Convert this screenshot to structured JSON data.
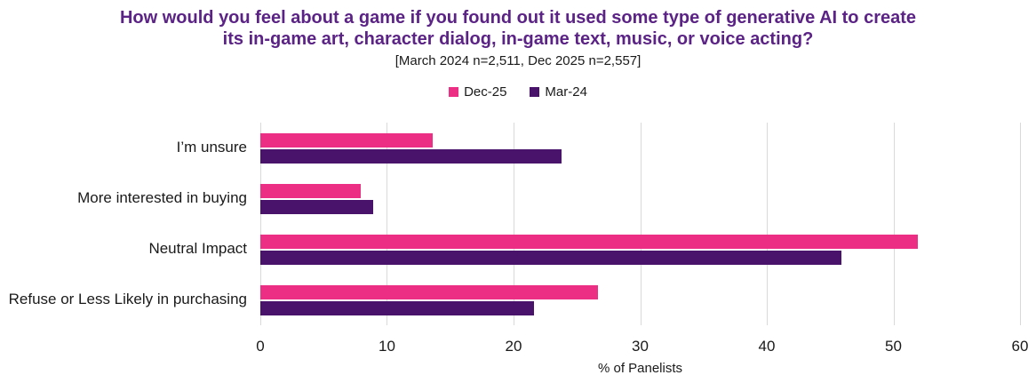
{
  "colors": {
    "title": "#5B2385",
    "gridline": "#D9D9D9",
    "text": "#1A1A1A",
    "dec25_pink": "#EC2E85",
    "mar24_purple": "#49136B"
  },
  "chart_data": {
    "type": "bar",
    "orientation": "horizontal",
    "title_lines": [
      "How would you feel about a game if you found out it used some type of generative AI to create",
      "its in-game art, character dialog, in-game text, music, or voice acting?"
    ],
    "title": "How would you feel about a game if you found out it used some type of generative AI to create its in-game art, character dialog, in-game text, music, or voice acting?",
    "subtitle": "[March 2024 n=2,511, Dec 2025 n=2,557]",
    "categories": [
      "I’m unsure",
      "More interested in buying",
      "Neutral Impact",
      "Refuse or Less Likely in purchasing"
    ],
    "series": [
      {
        "name": "Dec-25",
        "color": "#EC2E85",
        "values": [
          13.6,
          7.9,
          51.9,
          26.7
        ]
      },
      {
        "name": "Mar-24",
        "color": "#49136B",
        "values": [
          23.8,
          8.9,
          45.9,
          21.6
        ]
      }
    ],
    "xlabel": "% of Panelists",
    "xlim": [
      0,
      60
    ],
    "xticks": [
      0,
      10,
      20,
      30,
      40,
      50,
      60
    ],
    "grid": true,
    "legend_position": "top"
  }
}
